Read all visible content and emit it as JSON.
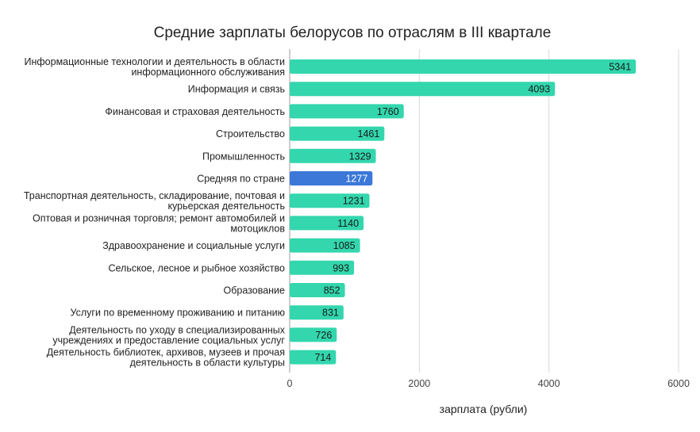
{
  "chart_data": {
    "type": "bar",
    "orientation": "horizontal",
    "title": "Средние зарплаты белорусов по отраслям в III квартале",
    "xlabel": "зарплата (рубли)",
    "ylabel": "",
    "xlim": [
      0,
      6000
    ],
    "x_ticks": [
      0,
      2000,
      4000,
      6000
    ],
    "grid": "vertical",
    "categories": [
      [
        "Информационные технологии и деятельность в области",
        "информационного обслуживания"
      ],
      [
        "Информация и связь"
      ],
      [
        "Финансовая и страховая деятельность"
      ],
      [
        "Строительство"
      ],
      [
        "Промышленность"
      ],
      [
        "Средняя по стране"
      ],
      [
        "Транспортная деятельность, складирование, почтовая и",
        "курьерская деятельность"
      ],
      [
        "Оптовая и розничная торговля; ремонт автомобилей и",
        "мотоциклов"
      ],
      [
        "Здравоохранение и социальные услуги"
      ],
      [
        "Сельское, лесное и рыбное хозяйство"
      ],
      [
        "Образование"
      ],
      [
        "Услуги по временному проживанию и питанию"
      ],
      [
        "Деятельность по уходу в специализированных",
        "учреждениях и предоставление социальных услуг"
      ],
      [
        "Деятельность библиотек, архивов, музеев и прочая",
        "деятельность в области культуры"
      ]
    ],
    "values": [
      5341,
      4093,
      1760,
      1461,
      1329,
      1277,
      1231,
      1140,
      1085,
      993,
      852,
      831,
      726,
      714
    ],
    "highlight_index": 5,
    "colors": {
      "bar": "#33d6ad",
      "highlight": "#3b78d8",
      "label": "#1a1a1a",
      "highlight_label": "#ffffff",
      "grid": "#d9d9d9"
    }
  }
}
